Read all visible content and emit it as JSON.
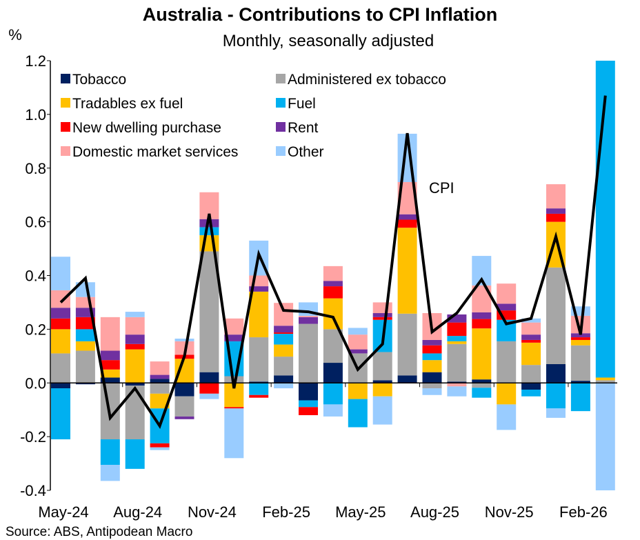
{
  "chart_data": {
    "type": "bar",
    "stacked": true,
    "title": "Australia - Contributions to CPI Inflation",
    "subtitle": "Monthly, seasonally adjusted",
    "ylabel": "%",
    "ylim": [
      -0.4,
      1.2
    ],
    "yticks": [
      -0.4,
      -0.2,
      0.0,
      0.2,
      0.4,
      0.6,
      0.8,
      1.0,
      1.2
    ],
    "ytick_labels": [
      "-0.4",
      "-0.2",
      "0.0",
      "0.2",
      "0.4",
      "0.6",
      "0.8",
      "1.0",
      "1.2"
    ],
    "grid": false,
    "legend_position": "top-left",
    "categories": [
      "May-24",
      "Jun-24",
      "Jul-24",
      "Aug-24",
      "Sep-24",
      "Oct-24",
      "Nov-24",
      "Dec-24",
      "Jan-25",
      "Feb-25",
      "Mar-25",
      "Apr-25",
      "May-25",
      "Jun-25",
      "Jul-25",
      "Aug-25",
      "Sep-25",
      "Oct-25",
      "Nov-25",
      "Dec-25",
      "Jan-26",
      "Feb-26",
      "Mar-26"
    ],
    "xtick_labels": [
      {
        "index": 0,
        "label": "May-24"
      },
      {
        "index": 3,
        "label": "Aug-24"
      },
      {
        "index": 6,
        "label": "Nov-24"
      },
      {
        "index": 9,
        "label": "Feb-25"
      },
      {
        "index": 12,
        "label": "May-25"
      },
      {
        "index": 15,
        "label": "Aug-25"
      },
      {
        "index": 18,
        "label": "Nov-25"
      },
      {
        "index": 21,
        "label": "Feb-26"
      }
    ],
    "series": [
      {
        "name": "Tobacco",
        "color": "#002060",
        "values": [
          -0.02,
          -0.005,
          0.02,
          -0.01,
          0.015,
          -0.05,
          0.04,
          0.0,
          0.005,
          0.028,
          -0.065,
          0.075,
          0.0,
          0.01,
          0.028,
          0.04,
          0.005,
          0.013,
          0.0,
          -0.025,
          0.07,
          0.008,
          0.0
        ]
      },
      {
        "name": "Administered ex tobacco",
        "color": "#A6A6A6",
        "values": [
          0.11,
          0.12,
          -0.21,
          -0.2,
          -0.04,
          -0.075,
          0.45,
          0.025,
          0.165,
          0.07,
          0.22,
          0.125,
          0.11,
          0.105,
          0.23,
          -0.02,
          0.14,
          -0.018,
          0.155,
          0.067,
          0.36,
          0.132,
          0.01
        ]
      },
      {
        "name": "Tradables ex fuel",
        "color": "#FFC000",
        "values": [
          0.09,
          0.035,
          0.03,
          0.125,
          -0.055,
          0.09,
          0.06,
          -0.09,
          0.17,
          0.045,
          0.0,
          0.115,
          -0.06,
          -0.05,
          0.32,
          0.045,
          0.01,
          0.19,
          -0.08,
          0.083,
          0.17,
          0.02,
          0.01
        ]
      },
      {
        "name": "Fuel",
        "color": "#00B0F0",
        "values": [
          -0.19,
          0.045,
          -0.095,
          -0.11,
          -0.13,
          0.0,
          0.03,
          0.13,
          -0.045,
          0.04,
          -0.025,
          -0.08,
          -0.105,
          0.12,
          0.0,
          0.025,
          0.02,
          -0.037,
          0.08,
          -0.025,
          -0.095,
          -0.105,
          1.25
        ]
      },
      {
        "name": "New dwelling purchase",
        "color": "#FF0000",
        "values": [
          0.04,
          0.045,
          0.035,
          0.02,
          -0.015,
          0.015,
          -0.04,
          -0.005,
          -0.01,
          0.005,
          -0.03,
          0.045,
          0.0,
          0.01,
          0.03,
          0.03,
          0.05,
          0.035,
          0.035,
          0.01,
          0.03,
          0.01,
          0.0
        ]
      },
      {
        "name": "Rent",
        "color": "#7030A0",
        "values": [
          0.04,
          0.035,
          0.035,
          0.035,
          0.015,
          -0.01,
          0.03,
          0.025,
          0.02,
          0.025,
          0.025,
          0.02,
          0.015,
          0.015,
          0.02,
          0.02,
          0.03,
          0.025,
          0.025,
          0.02,
          0.02,
          0.015,
          0.0
        ]
      },
      {
        "name": "Domestic market services",
        "color": "#FFA3A3",
        "values": [
          0.065,
          0.04,
          0.125,
          0.065,
          0.05,
          0.05,
          0.1,
          0.06,
          0.04,
          0.085,
          0.005,
          0.055,
          0.055,
          0.04,
          0.12,
          0.1,
          -0.013,
          0.1,
          0.075,
          0.045,
          0.09,
          0.065,
          0.0
        ]
      },
      {
        "name": "Other",
        "color": "#99CCFF",
        "values": [
          0.125,
          0.055,
          -0.06,
          0.02,
          -0.01,
          0.01,
          -0.02,
          -0.185,
          0.13,
          -0.02,
          0.05,
          -0.045,
          0.025,
          -0.105,
          0.18,
          -0.025,
          -0.037,
          0.11,
          -0.095,
          0.015,
          -0.035,
          0.035,
          -0.42
        ]
      }
    ],
    "line": {
      "name": "CPI",
      "label": "CPI",
      "color": "#000000",
      "values": [
        0.3,
        0.39,
        -0.13,
        -0.02,
        -0.16,
        0.1,
        0.63,
        -0.02,
        0.48,
        0.27,
        0.265,
        0.245,
        0.05,
        0.145,
        0.93,
        0.19,
        0.26,
        0.385,
        0.22,
        0.24,
        0.545,
        0.18,
        1.07
      ]
    },
    "source": "Source: ABS, Antipodean Macro"
  }
}
